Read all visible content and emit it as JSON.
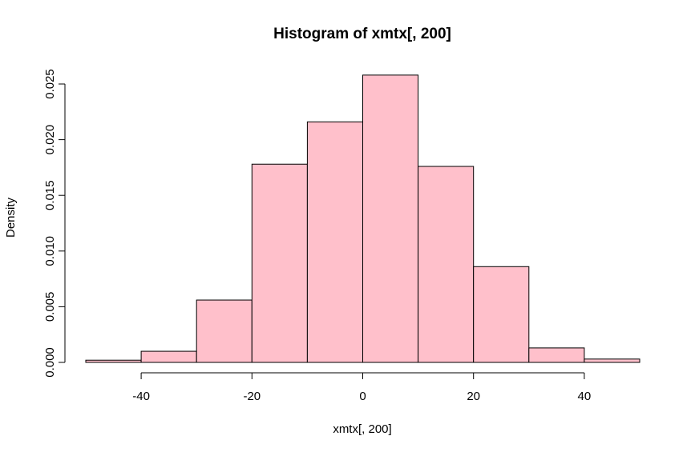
{
  "chart_data": {
    "type": "bar",
    "title": "Histogram of xmtx[, 200]",
    "xlabel": "xmtx[, 200]",
    "ylabel": "Density",
    "bins": [
      {
        "from": -50,
        "to": -40,
        "value": 0.0002
      },
      {
        "from": -40,
        "to": -30,
        "value": 0.001
      },
      {
        "from": -30,
        "to": -20,
        "value": 0.0056
      },
      {
        "from": -20,
        "to": -10,
        "value": 0.0178
      },
      {
        "from": -10,
        "to": 0,
        "value": 0.0216
      },
      {
        "from": 0,
        "to": 10,
        "value": 0.0258
      },
      {
        "from": 10,
        "to": 20,
        "value": 0.0176
      },
      {
        "from": 20,
        "to": 30,
        "value": 0.0086
      },
      {
        "from": 30,
        "to": 40,
        "value": 0.0013
      },
      {
        "from": 40,
        "to": 50,
        "value": 0.0003
      }
    ],
    "xlim": [
      -50,
      50
    ],
    "ylim": [
      0,
      0.025
    ],
    "x_ticks": [
      -40,
      -20,
      0,
      20,
      40
    ],
    "x_tick_labels": [
      "-40",
      "-20",
      "0",
      "20",
      "40"
    ],
    "y_ticks": [
      0,
      0.005,
      0.01,
      0.015,
      0.02,
      0.025
    ],
    "y_tick_labels": [
      "0.000",
      "0.005",
      "0.010",
      "0.015",
      "0.020",
      "0.025"
    ],
    "bar_color": "#FFC0CB",
    "border_color": "#000000",
    "grid": false
  }
}
